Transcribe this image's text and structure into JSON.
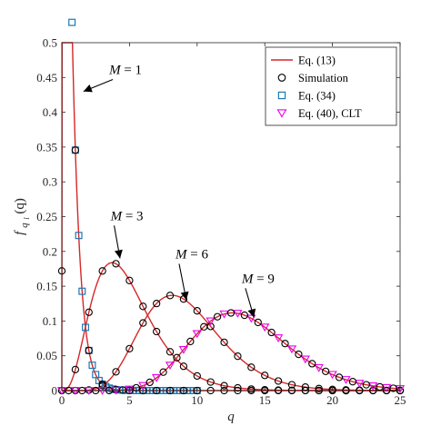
{
  "chart_data": {
    "type": "line",
    "title": "",
    "xlabel": "q",
    "ylabel": "f_{q_l}(q)",
    "ylabel_main": "f",
    "ylabel_sub": "q",
    "ylabel_subsub": "l",
    "ylabel_arg": "(q)",
    "xlim": [
      0,
      25
    ],
    "ylim": [
      0,
      0.5
    ],
    "xticks": [
      "0",
      "5",
      "10",
      "15",
      "20",
      "25"
    ],
    "yticks": [
      "0",
      "0.05",
      "0.1",
      "0.15",
      "0.2",
      "0.25",
      "0.3",
      "0.35",
      "0.4",
      "0.45",
      "0.5"
    ],
    "grid": false,
    "legend_position": "top-right",
    "legend": [
      {
        "label": "Eq. (13)",
        "marker": "line",
        "color": "#d62728"
      },
      {
        "label": "Simulation",
        "marker": "circle",
        "color": "#000000"
      },
      {
        "label": "Eq. (34)",
        "marker": "square",
        "color": "#1f77b4"
      },
      {
        "label": "Eq. (40), CLT",
        "marker": "triangle-down",
        "color": "#e600e6"
      }
    ],
    "annotations": [
      {
        "text": "M = 1",
        "var": "M",
        "rest": " = 1",
        "label_at": [
          3.5,
          0.455
        ],
        "arrow_to": [
          1.6,
          0.43
        ]
      },
      {
        "text": "M = 3",
        "var": "M",
        "rest": " = 3",
        "label_at": [
          3.6,
          0.245
        ],
        "arrow_to": [
          4.3,
          0.19
        ]
      },
      {
        "text": "M = 6",
        "var": "M",
        "rest": " = 6",
        "label_at": [
          8.4,
          0.19
        ],
        "arrow_to": [
          9.2,
          0.13
        ]
      },
      {
        "text": "M = 9",
        "var": "M",
        "rest": " = 9",
        "label_at": [
          13.3,
          0.155
        ],
        "arrow_to": [
          14.2,
          0.105
        ]
      }
    ],
    "series": [
      {
        "name": "M = 1",
        "M": 1,
        "model": "gamma",
        "shape": 1.19,
        "scale": 0.52
      },
      {
        "name": "M = 3",
        "M": 3,
        "model": "gamma",
        "shape": 4.1,
        "scale": 1.2
      },
      {
        "name": "M = 6",
        "M": 6,
        "model": "gamma",
        "shape": 9.0,
        "scale": 1.02
      },
      {
        "name": "M = 9",
        "M": 9,
        "model": "gamma",
        "shape": 13.6,
        "scale": 1.0
      }
    ],
    "colors": {
      "curve": "#d62728",
      "simulation": "#000000",
      "eq34": "#1f77b4",
      "clt": "#e600e6"
    }
  }
}
